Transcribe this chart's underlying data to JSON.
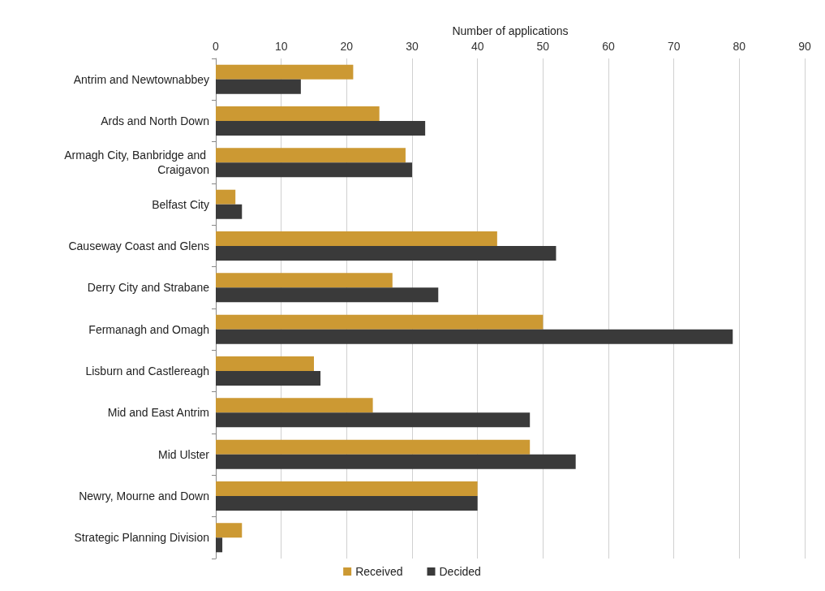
{
  "chart_data": {
    "type": "bar",
    "orientation": "horizontal",
    "xlabel": "Number of applications",
    "categories": [
      "Antrim and Newtownabbey",
      "Ards and North Down",
      "Armagh City, Banbridge and Craigavon",
      "Belfast City",
      "Causeway Coast and Glens",
      "Derry City and Strabane",
      "Fermanagh and Omagh",
      "Lisburn and Castlereagh",
      "Mid and East Antrim",
      "Mid Ulster",
      "Newry, Mourne and Down",
      "Strategic Planning Division"
    ],
    "series": [
      {
        "name": "Received",
        "color": "#cc9933",
        "values": [
          21,
          25,
          29,
          3,
          43,
          27,
          50,
          15,
          24,
          48,
          40,
          4
        ]
      },
      {
        "name": "Decided",
        "color": "#3a3a3a",
        "values": [
          13,
          32,
          30,
          4,
          52,
          34,
          79,
          16,
          48,
          55,
          40,
          1
        ]
      }
    ],
    "xlim": [
      0,
      90
    ],
    "xticks": [
      0,
      10,
      20,
      30,
      40,
      50,
      60,
      70,
      80,
      90
    ],
    "grid": "x",
    "legend": "bottom"
  }
}
